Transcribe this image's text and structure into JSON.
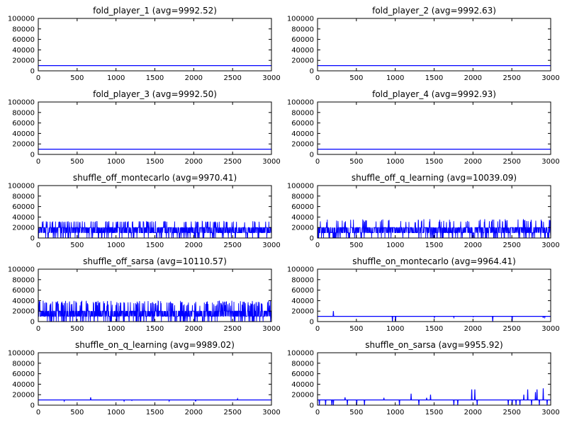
{
  "chart_data": [
    {
      "type": "line",
      "title": "fold_player_1 (avg=9992.52)",
      "xlim": [
        0,
        3000
      ],
      "ylim": [
        0,
        100000
      ],
      "xticks": [
        0,
        500,
        1000,
        1500,
        2000,
        2500,
        3000
      ],
      "yticks": [
        0,
        20000,
        40000,
        60000,
        80000,
        100000
      ],
      "grid": false,
      "pattern": "flat",
      "series": [
        {
          "color": "#0000ff",
          "x": [
            0,
            3000
          ],
          "y": [
            10000,
            10000
          ]
        }
      ]
    },
    {
      "type": "line",
      "title": "fold_player_2 (avg=9992.63)",
      "xlim": [
        0,
        3000
      ],
      "ylim": [
        0,
        100000
      ],
      "xticks": [
        0,
        500,
        1000,
        1500,
        2000,
        2500,
        3000
      ],
      "yticks": [
        0,
        20000,
        40000,
        60000,
        80000,
        100000
      ],
      "grid": false,
      "pattern": "flat",
      "series": [
        {
          "color": "#0000ff",
          "x": [
            0,
            3000
          ],
          "y": [
            10000,
            10000
          ]
        }
      ]
    },
    {
      "type": "line",
      "title": "fold_player_3 (avg=9992.50)",
      "xlim": [
        0,
        3000
      ],
      "ylim": [
        0,
        100000
      ],
      "xticks": [
        0,
        500,
        1000,
        1500,
        2000,
        2500,
        3000
      ],
      "yticks": [
        0,
        20000,
        40000,
        60000,
        80000,
        100000
      ],
      "grid": false,
      "pattern": "flat",
      "series": [
        {
          "color": "#0000ff",
          "x": [
            0,
            3000
          ],
          "y": [
            10000,
            10000
          ]
        }
      ]
    },
    {
      "type": "line",
      "title": "fold_player_4 (avg=9992.93)",
      "xlim": [
        0,
        3000
      ],
      "ylim": [
        0,
        100000
      ],
      "xticks": [
        0,
        500,
        1000,
        1500,
        2000,
        2500,
        3000
      ],
      "yticks": [
        0,
        20000,
        40000,
        60000,
        80000,
        100000
      ],
      "grid": false,
      "pattern": "flat",
      "series": [
        {
          "color": "#0000ff",
          "x": [
            0,
            3000
          ],
          "y": [
            10000,
            10000
          ]
        }
      ]
    },
    {
      "type": "line",
      "title": "shuffle_off_montecarlo (avg=9970.41)",
      "xlim": [
        0,
        3000
      ],
      "ylim": [
        0,
        100000
      ],
      "xticks": [
        0,
        500,
        1000,
        1500,
        2000,
        2500,
        3000
      ],
      "yticks": [
        0,
        20000,
        40000,
        60000,
        80000,
        100000
      ],
      "grid": false,
      "pattern": "noisy",
      "series": [
        {
          "color": "#0000ff",
          "n": 3000,
          "band": [
            0,
            20000
          ],
          "spikes": [
            30000,
            32000
          ],
          "spike_count": 110,
          "mean": 9970.41
        }
      ]
    },
    {
      "type": "line",
      "title": "shuffle_off_q_learning (avg=10039.09)",
      "xlim": [
        0,
        3000
      ],
      "ylim": [
        0,
        100000
      ],
      "xticks": [
        0,
        500,
        1000,
        1500,
        2000,
        2500,
        3000
      ],
      "yticks": [
        0,
        20000,
        40000,
        60000,
        80000,
        100000
      ],
      "grid": false,
      "pattern": "noisy",
      "series": [
        {
          "color": "#0000ff",
          "n": 3000,
          "band": [
            0,
            20000
          ],
          "spikes": [
            30000,
            36000
          ],
          "spike_count": 90,
          "mean": 10039.09
        }
      ]
    },
    {
      "type": "line",
      "title": "shuffle_off_sarsa (avg=10110.57)",
      "xlim": [
        0,
        3000
      ],
      "ylim": [
        0,
        100000
      ],
      "xticks": [
        0,
        500,
        1000,
        1500,
        2000,
        2500,
        3000
      ],
      "yticks": [
        0,
        20000,
        40000,
        60000,
        80000,
        100000
      ],
      "grid": false,
      "pattern": "noisy",
      "series": [
        {
          "color": "#0000ff",
          "n": 3000,
          "band": [
            0,
            20000
          ],
          "spikes": [
            30000,
            40000
          ],
          "spike_count": 180,
          "mean": 10110.57
        }
      ]
    },
    {
      "type": "line",
      "title": "shuffle_on_montecarlo (avg=9964.41)",
      "xlim": [
        0,
        3000
      ],
      "ylim": [
        0,
        100000
      ],
      "xticks": [
        0,
        500,
        1000,
        1500,
        2000,
        2500,
        3000
      ],
      "yticks": [
        0,
        20000,
        40000,
        60000,
        80000,
        100000
      ],
      "grid": false,
      "pattern": "sparse",
      "series": [
        {
          "color": "#0000ff",
          "baseline": 10000,
          "events": [
            [
              200,
              20000
            ],
            [
              960,
              0
            ],
            [
              1000,
              0
            ],
            [
              1500,
              8000
            ],
            [
              1750,
              8000
            ],
            [
              2000,
              9000
            ],
            [
              2250,
              0
            ],
            [
              2500,
              0
            ],
            [
              2900,
              7000
            ],
            [
              2920,
              8000
            ]
          ]
        }
      ]
    },
    {
      "type": "line",
      "title": "shuffle_on_q_learning (avg=9989.02)",
      "xlim": [
        0,
        3000
      ],
      "ylim": [
        0,
        100000
      ],
      "xticks": [
        0,
        500,
        1000,
        1500,
        2000,
        2500,
        3000
      ],
      "yticks": [
        0,
        20000,
        40000,
        60000,
        80000,
        100000
      ],
      "grid": false,
      "pattern": "sparse",
      "series": [
        {
          "color": "#0000ff",
          "baseline": 10000,
          "events": [
            [
              330,
              8000
            ],
            [
              670,
              15000
            ],
            [
              1100,
              8000
            ],
            [
              1200,
              9000
            ],
            [
              1680,
              8000
            ],
            [
              2020,
              7000
            ],
            [
              2560,
              12000
            ]
          ]
        }
      ]
    },
    {
      "type": "line",
      "title": "shuffle_on_sarsa (avg=9955.92)",
      "xlim": [
        0,
        3000
      ],
      "ylim": [
        0,
        100000
      ],
      "xticks": [
        0,
        500,
        1000,
        1500,
        2000,
        2500,
        3000
      ],
      "yticks": [
        0,
        20000,
        40000,
        60000,
        80000,
        100000
      ],
      "grid": false,
      "pattern": "sparse",
      "series": [
        {
          "color": "#0000ff",
          "baseline": 10000,
          "events": [
            [
              20,
              0
            ],
            [
              100,
              0
            ],
            [
              180,
              0
            ],
            [
              200,
              0
            ],
            [
              350,
              15000
            ],
            [
              380,
              0
            ],
            [
              500,
              0
            ],
            [
              600,
              0
            ],
            [
              850,
              14000
            ],
            [
              1050,
              0
            ],
            [
              1200,
              22000
            ],
            [
              1300,
              0
            ],
            [
              1400,
              14000
            ],
            [
              1450,
              20000
            ],
            [
              1750,
              0
            ],
            [
              1800,
              0
            ],
            [
              1980,
              30000
            ],
            [
              2020,
              30000
            ],
            [
              2050,
              0
            ],
            [
              2450,
              0
            ],
            [
              2500,
              0
            ],
            [
              2550,
              0
            ],
            [
              2600,
              0
            ],
            [
              2650,
              20000
            ],
            [
              2700,
              30000
            ],
            [
              2750,
              0
            ],
            [
              2800,
              25000
            ],
            [
              2820,
              30000
            ],
            [
              2850,
              0
            ],
            [
              2900,
              32000
            ],
            [
              2950,
              0
            ]
          ]
        }
      ]
    }
  ]
}
